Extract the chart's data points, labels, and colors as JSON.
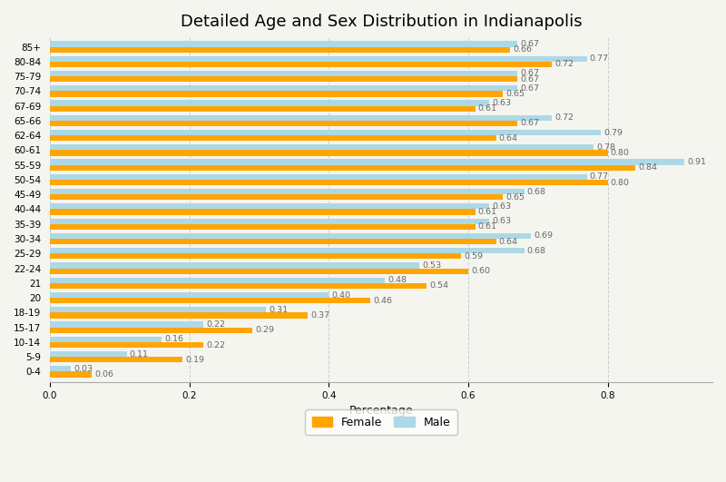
{
  "title": "Detailed Age and Sex Distribution in Indianapolis",
  "xlabel": "Percentage",
  "age_groups": [
    "0-4",
    "5-9",
    "10-14",
    "15-17",
    "18-19",
    "20",
    "21",
    "22-24",
    "25-29",
    "30-34",
    "35-39",
    "40-44",
    "45-49",
    "50-54",
    "55-59",
    "60-61",
    "62-64",
    "65-66",
    "67-69",
    "70-74",
    "75-79",
    "80-84",
    "85+"
  ],
  "female": [
    0.06,
    0.19,
    0.22,
    0.29,
    0.37,
    0.46,
    0.54,
    0.6,
    0.59,
    0.64,
    0.61,
    0.61,
    0.65,
    0.8,
    0.84,
    0.8,
    0.64,
    0.67,
    0.61,
    0.65,
    0.67,
    0.72,
    0.66
  ],
  "male": [
    0.03,
    0.11,
    0.16,
    0.22,
    0.31,
    0.4,
    0.48,
    0.53,
    0.68,
    0.69,
    0.63,
    0.63,
    0.68,
    0.77,
    0.91,
    0.78,
    0.79,
    0.72,
    0.63,
    0.67,
    0.67,
    0.77,
    0.67
  ],
  "female_color": "#FFA500",
  "male_color": "#ADD8E6",
  "background_color": "#F5F5F0",
  "grid_color": "#CCCCCC",
  "xlim": [
    0,
    0.95
  ],
  "bar_height": 0.38,
  "figsize": [
    8.0,
    5.31
  ],
  "dpi": 100,
  "title_fontsize": 13,
  "axis_label_fontsize": 9,
  "tick_fontsize": 7.5,
  "annotation_fontsize": 6.8,
  "legend_fontsize": 9
}
